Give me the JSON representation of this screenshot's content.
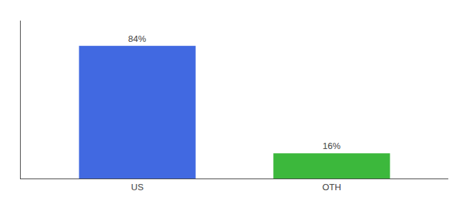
{
  "chart_data": {
    "type": "bar",
    "categories": [
      "US",
      "OTH"
    ],
    "values": [
      84,
      16
    ],
    "value_labels": [
      "84%",
      "16%"
    ],
    "colors": [
      "#4169e1",
      "#3cb83c"
    ],
    "ylim": [
      0,
      100
    ],
    "data_labels": true,
    "tick_labels": "x",
    "grid": false
  }
}
